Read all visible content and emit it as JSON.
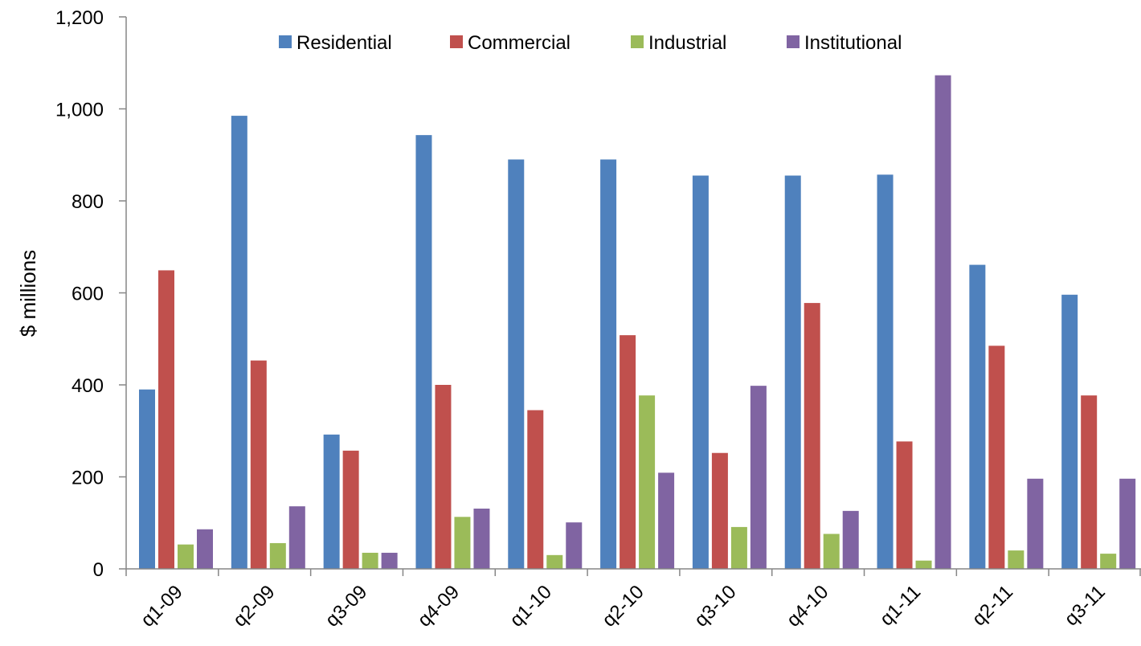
{
  "chart_data": {
    "type": "bar",
    "title": "",
    "xlabel": "",
    "ylabel": "$ millions",
    "ylim": [
      0,
      1200
    ],
    "yticks": [
      0,
      200,
      400,
      600,
      800,
      1000,
      1200
    ],
    "ytick_labels": [
      "0",
      "200",
      "400",
      "600",
      "800",
      "1,000",
      "1,200"
    ],
    "categories": [
      "q1-09",
      "q2-09",
      "q3-09",
      "q4-09",
      "q1-10",
      "q2-10",
      "q3-10",
      "q4-10",
      "q1-11",
      "q2-11",
      "q3-11"
    ],
    "legend_position": "top",
    "grid": false,
    "series": [
      {
        "name": "Residential",
        "color": "#4F81BD",
        "values": [
          390,
          985,
          292,
          943,
          890,
          890,
          855,
          855,
          857,
          661,
          596
        ]
      },
      {
        "name": "Commercial",
        "color": "#C0504D",
        "values": [
          649,
          453,
          257,
          400,
          345,
          508,
          252,
          578,
          277,
          485,
          377
        ]
      },
      {
        "name": "Industrial",
        "color": "#9BBB59",
        "values": [
          53,
          56,
          35,
          113,
          30,
          377,
          91,
          76,
          18,
          40,
          33
        ]
      },
      {
        "name": "Institutional",
        "color": "#8064A2",
        "values": [
          86,
          136,
          35,
          131,
          101,
          209,
          398,
          126,
          1073,
          196,
          196
        ]
      }
    ]
  }
}
